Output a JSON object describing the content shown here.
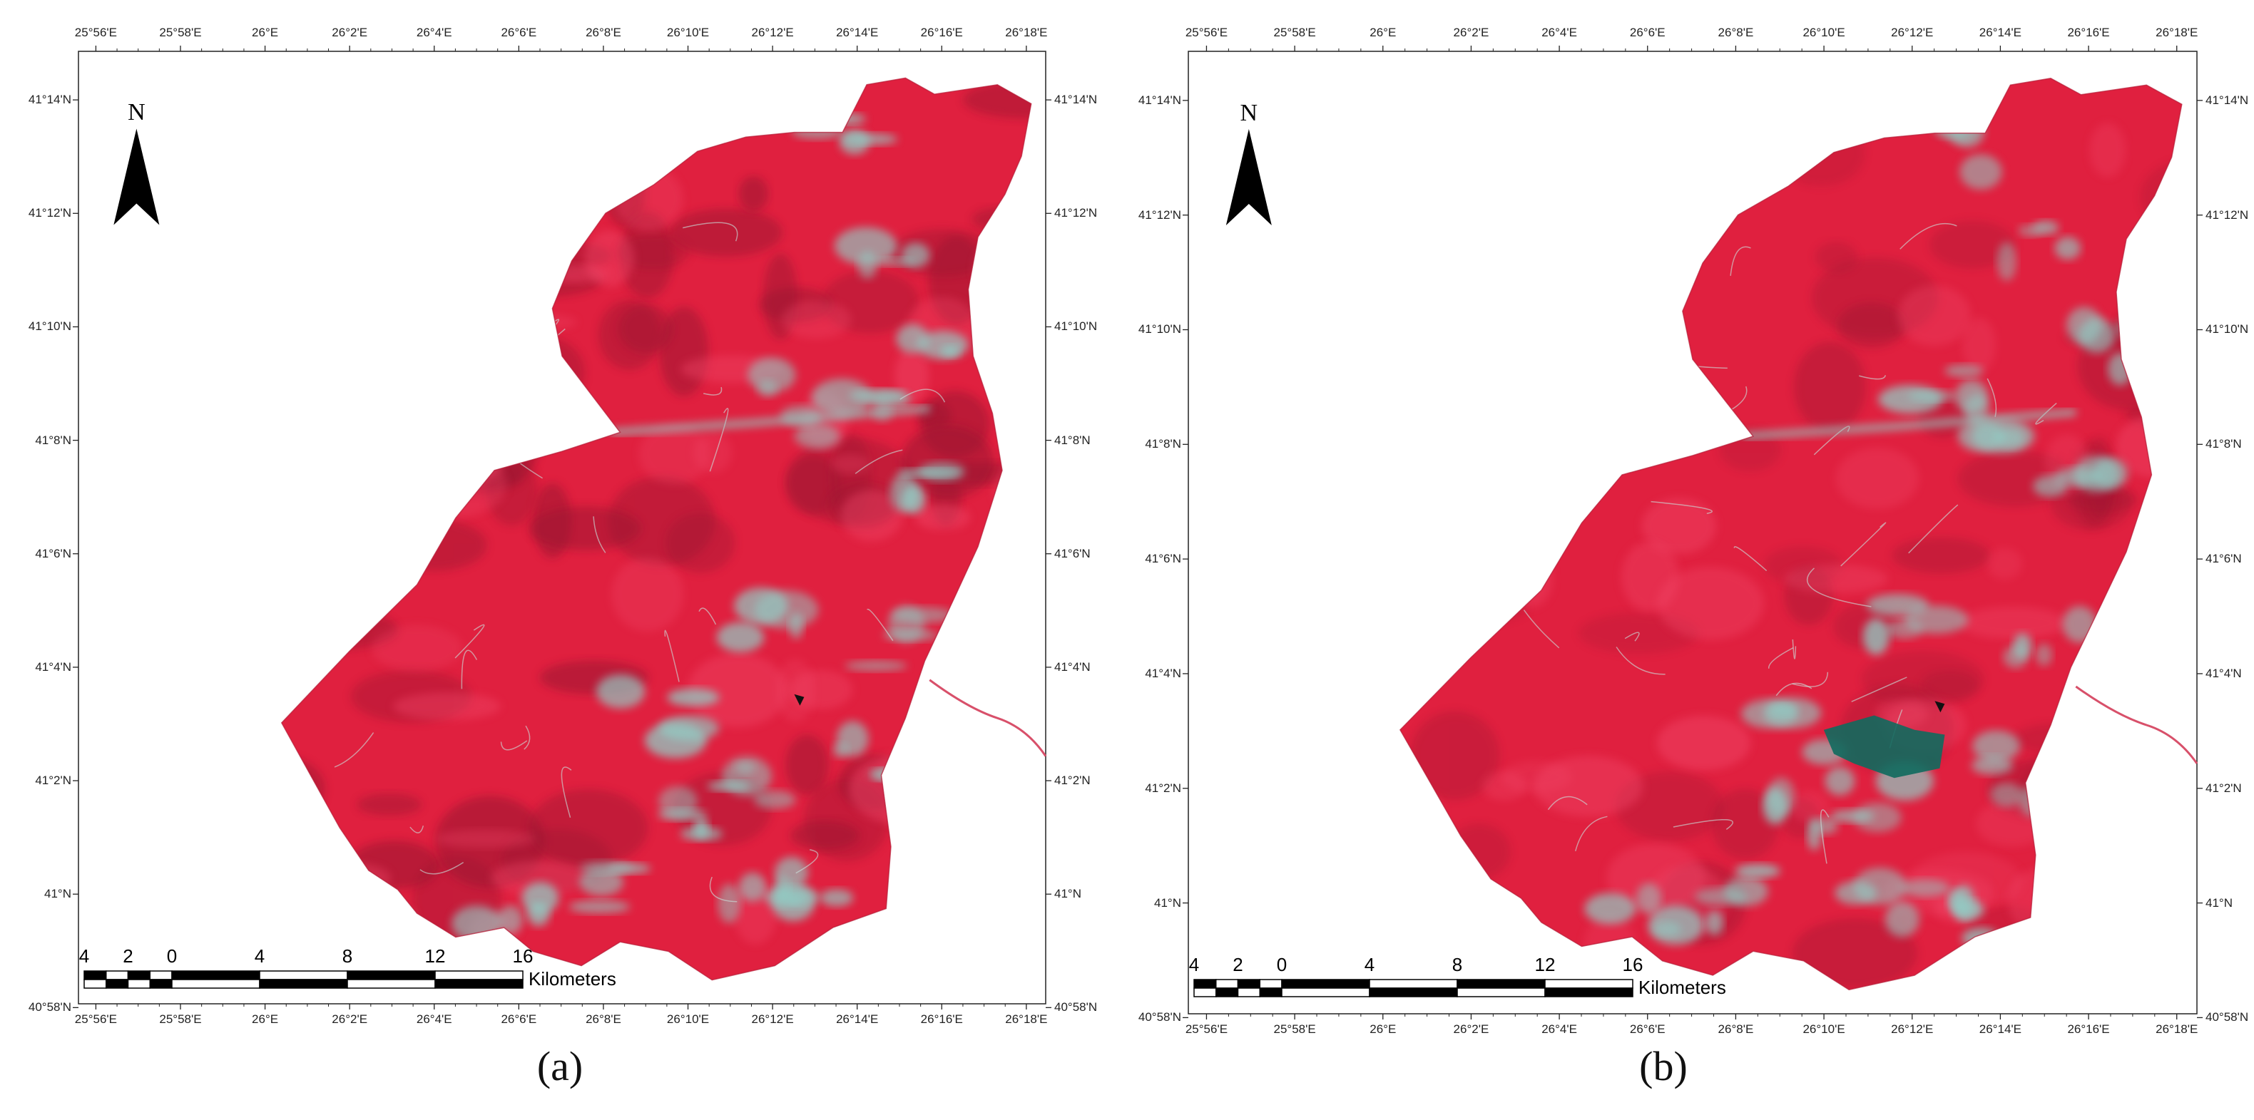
{
  "panels": [
    {
      "caption": "(a)",
      "variant": "a",
      "lon_labels": [
        "25°56'E",
        "25°58'E",
        "26°E",
        "26°2'E",
        "26°4'E",
        "26°6'E",
        "26°8'E",
        "26°10'E",
        "26°12'E",
        "26°14'E",
        "26°16'E",
        "26°18'E"
      ],
      "lat_labels": [
        "41°14'N",
        "41°12'N",
        "41°10'N",
        "41°8'N",
        "41°6'N",
        "41°4'N",
        "41°2'N",
        "41°N",
        "40°58'N"
      ],
      "north_label": "N",
      "scale_numbers": [
        "4",
        "2",
        "0",
        "4",
        "8",
        "12",
        "16"
      ],
      "scale_unit": "Kilometers"
    },
    {
      "caption": "(b)",
      "variant": "b",
      "lon_labels": [
        "25°56'E",
        "25°58'E",
        "26°E",
        "26°2'E",
        "26°4'E",
        "26°6'E",
        "26°8'E",
        "26°10'E",
        "26°12'E",
        "26°14'E",
        "26°16'E",
        "26°18'E"
      ],
      "lat_labels": [
        "41°14'N",
        "41°12'N",
        "41°10'N",
        "41°8'N",
        "41°6'N",
        "41°4'N",
        "41°2'N",
        "41°N",
        "40°58'N"
      ],
      "north_label": "N",
      "scale_numbers": [
        "4",
        "2",
        "0",
        "4",
        "8",
        "12",
        "16"
      ],
      "scale_unit": "Kilometers"
    }
  ],
  "colors": {
    "vegetation_red": "#e0203f",
    "bare_cyan": "#8fd0c8",
    "burned_dark_teal": "#0f6a5e",
    "frame": "#222222"
  }
}
